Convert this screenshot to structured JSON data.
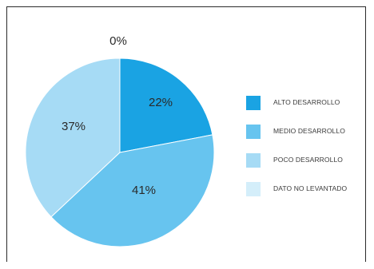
{
  "chart_data": {
    "type": "pie",
    "slices": [
      {
        "label": "ALTO DESARROLLO",
        "value": 22,
        "display": "22%",
        "color": "#1aa3e3"
      },
      {
        "label": "MEDIO DESARROLLO",
        "value": 41,
        "display": "41%",
        "color": "#67c4ef"
      },
      {
        "label": "POCO DESARROLLO",
        "value": 37,
        "display": "37%",
        "color": "#a6dbf5"
      },
      {
        "label": "DATO NO LEVANTADO",
        "value": 0,
        "display": "0%",
        "color": "#d4eefa"
      }
    ],
    "legend_position": "right"
  }
}
